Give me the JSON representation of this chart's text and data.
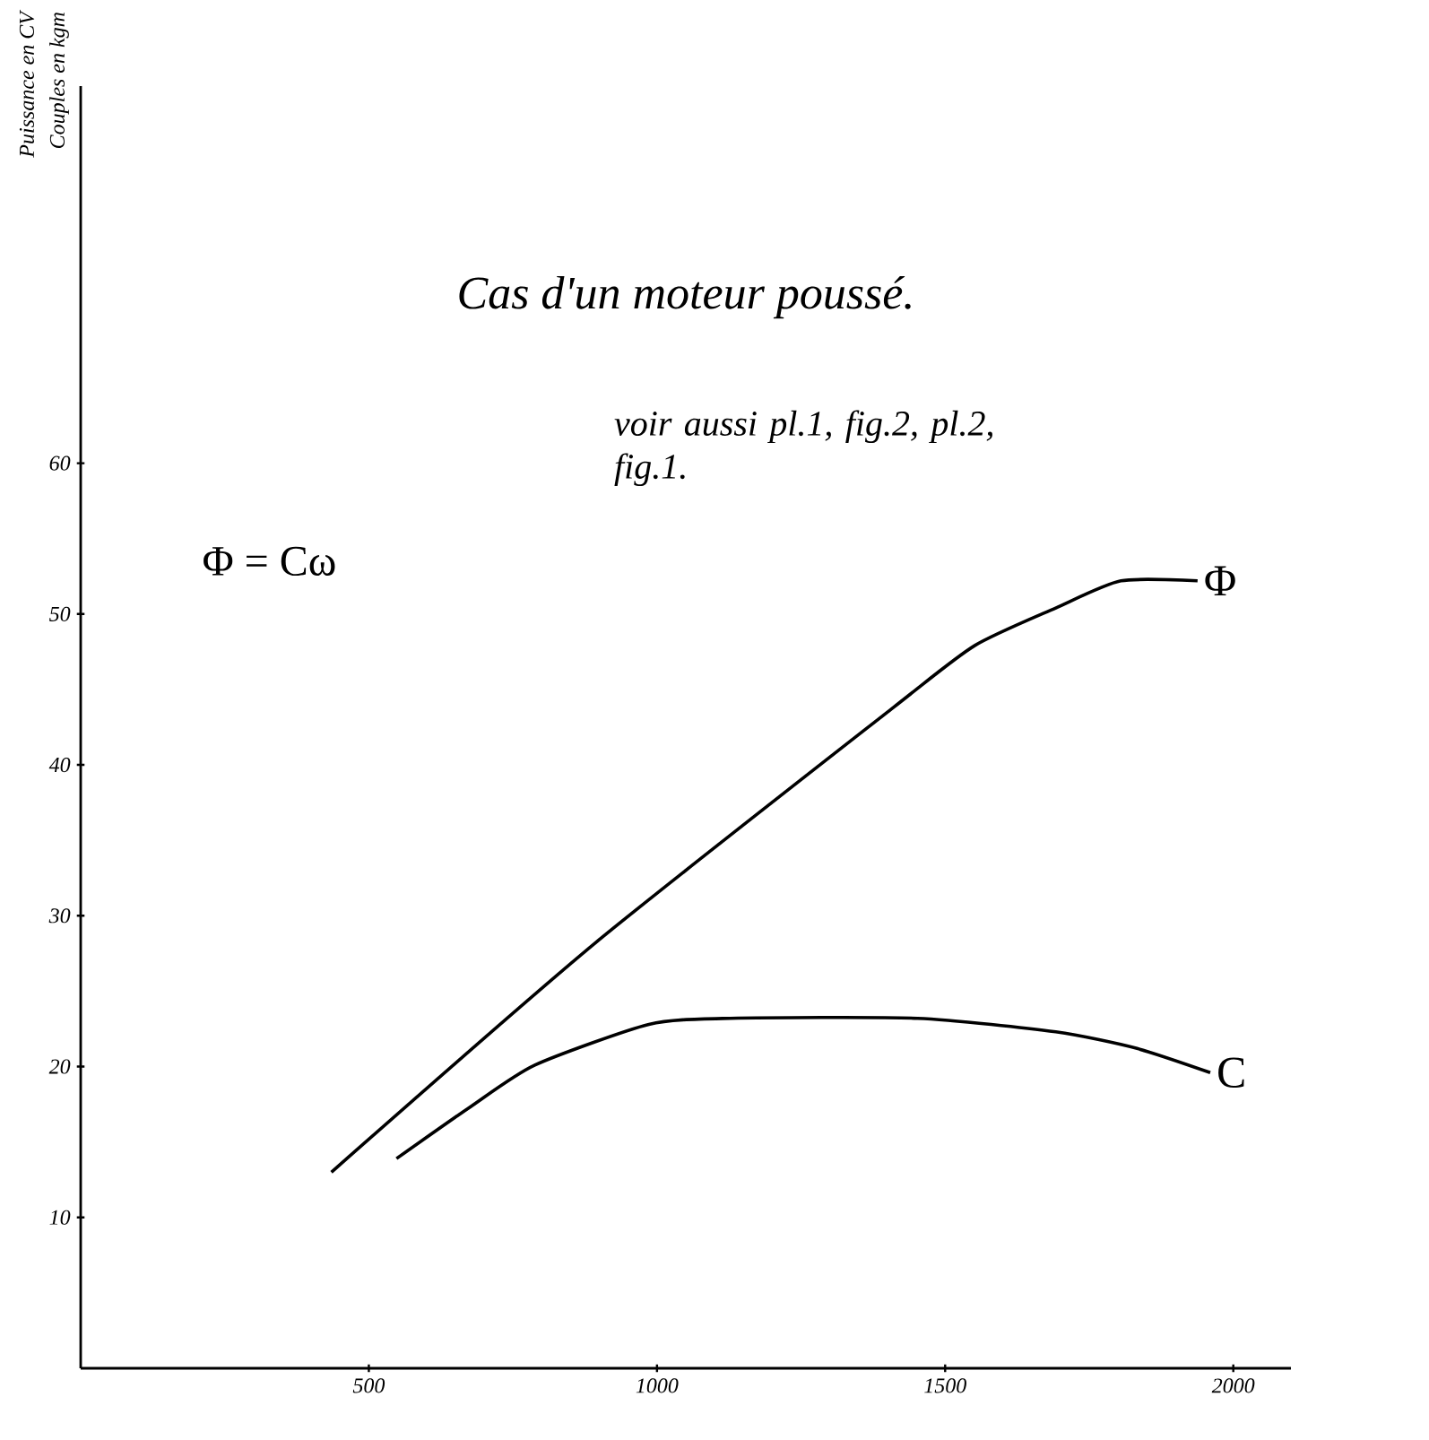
{
  "chart_data": {
    "type": "line",
    "title": "Cas d'un moteur poussé.",
    "subtitle": "voir aussi pl.1, fig.2, pl.2, fig.1.",
    "ylabel": "Puissance en CV",
    "annotations": [
      "Couples en kgm",
      "Φ = Cω"
    ],
    "xlim": [
      0,
      2100
    ],
    "ylim": [
      0,
      85
    ],
    "xticks": [
      500,
      1000,
      1500,
      2000
    ],
    "yticks": [
      10,
      20,
      30,
      40,
      50,
      60
    ],
    "grid": false,
    "legend": false,
    "marker": "none",
    "line_style": "solid",
    "series": [
      {
        "name": "Φ",
        "color": "#000000",
        "x": [
          435,
          893,
          1410,
          1551,
          1692,
          1805,
          1938
        ],
        "values": [
          13.0,
          28.2,
          43.8,
          47.9,
          50.4,
          52.2,
          52.2
        ]
      },
      {
        "name": "C",
        "color": "#000000",
        "x": [
          548,
          675,
          788,
          986,
          1127,
          1452,
          1692,
          1833,
          1960
        ],
        "values": [
          13.9,
          17.3,
          20.1,
          22.8,
          23.2,
          23.2,
          22.3,
          21.2,
          19.6
        ]
      }
    ]
  }
}
